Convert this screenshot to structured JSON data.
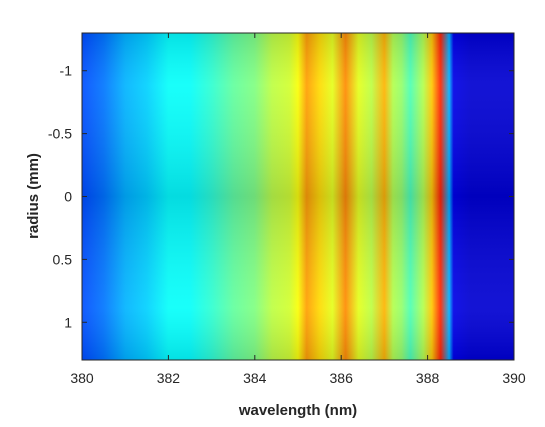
{
  "chart_data": {
    "type": "heatmap",
    "title": "",
    "xlabel": "wavelength (nm)",
    "ylabel": "radius (mm)",
    "xlim": [
      380,
      390
    ],
    "ylim": [
      -1.3,
      1.3
    ],
    "y_reversed": true,
    "colormap": "jet",
    "grid": false,
    "xticks": [
      380,
      382,
      384,
      386,
      388,
      390
    ],
    "xtick_labels": [
      "380",
      "382",
      "384",
      "386",
      "388",
      "390"
    ],
    "yticks": [
      -1,
      -0.5,
      0,
      0.5,
      1
    ],
    "ytick_labels": [
      "-1",
      "-0.5",
      "0",
      "0.5",
      "1"
    ],
    "intensity_profile": {
      "x": [
        380,
        380.5,
        381,
        381.5,
        382,
        382.5,
        383,
        383.5,
        384,
        384.4,
        384.8,
        385.0,
        385.2,
        385.5,
        385.8,
        386.1,
        386.4,
        386.7,
        387.0,
        387.2,
        387.4,
        387.6,
        387.9,
        388.1,
        388.3,
        388.5,
        388.6,
        389,
        390
      ],
      "value": [
        0.2,
        0.24,
        0.3,
        0.33,
        0.38,
        0.38,
        0.42,
        0.47,
        0.5,
        0.56,
        0.58,
        0.62,
        0.72,
        0.66,
        0.6,
        0.74,
        0.6,
        0.56,
        0.7,
        0.55,
        0.52,
        0.45,
        0.55,
        0.68,
        0.84,
        0.3,
        0.1,
        0.08,
        0.08
      ]
    },
    "peaks_nm": [
      385.2,
      386.1,
      387.0,
      388.3
    ]
  }
}
